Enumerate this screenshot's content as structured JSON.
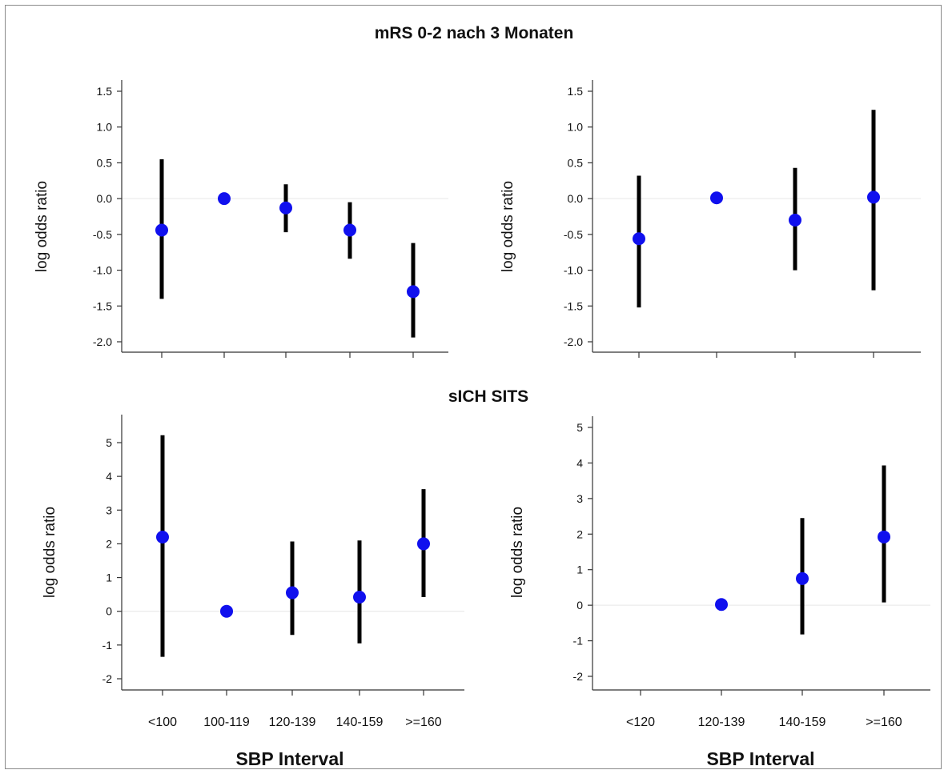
{
  "headings": {
    "top": "mRS 0-2 nach 3 Monaten",
    "middle": "sICH SITS"
  },
  "x_titles": [
    "SBP Interval",
    "SBP Interval"
  ],
  "colors": {
    "point": "#1010ee",
    "whisker": "#000000",
    "axis": "#333333",
    "zero_line": "#e6e6e6"
  },
  "chart_data": [
    {
      "type": "scatter",
      "subtype": "point-range",
      "categories": [
        "<100",
        "100-119",
        "120-139",
        "140-159",
        ">=160"
      ],
      "values": [
        -0.44,
        0.0,
        -0.13,
        -0.44,
        -1.3
      ],
      "ci_low": [
        -1.4,
        null,
        -0.47,
        -0.84,
        -1.94
      ],
      "ci_high": [
        0.55,
        null,
        0.2,
        -0.05,
        -0.62
      ],
      "ylabel": "log odds ratio",
      "ylim": [
        -2.0,
        1.5
      ],
      "yticks": [
        -2.0,
        -1.5,
        -1.0,
        -0.5,
        0.0,
        0.5,
        1.0,
        1.5
      ],
      "ytick_labels": [
        "-2.0",
        "-1.5",
        "-1.0",
        "-0.5",
        "0.0",
        "0.5",
        "1.0",
        "1.5"
      ],
      "show_xtick_labels": false,
      "reference_line": 0
    },
    {
      "type": "scatter",
      "subtype": "point-range",
      "categories": [
        "<120",
        "120-139",
        "140-159",
        ">=160"
      ],
      "values": [
        -0.56,
        0.01,
        -0.3,
        0.02
      ],
      "ci_low": [
        -1.52,
        null,
        -1.0,
        -1.28
      ],
      "ci_high": [
        0.32,
        null,
        0.43,
        1.24
      ],
      "ylabel": "log odds ratio",
      "ylim": [
        -2.0,
        1.5
      ],
      "yticks": [
        -2.0,
        -1.5,
        -1.0,
        -0.5,
        0.0,
        0.5,
        1.0,
        1.5
      ],
      "ytick_labels": [
        "-2.0",
        "-1.5",
        "-1.0",
        "-0.5",
        "0.0",
        "0.5",
        "1.0",
        "1.5"
      ],
      "show_xtick_labels": false,
      "reference_line": 0
    },
    {
      "type": "scatter",
      "subtype": "point-range",
      "categories": [
        "<100",
        "100-119",
        "120-139",
        "140-159",
        ">=160"
      ],
      "values": [
        2.2,
        0.0,
        0.55,
        0.42,
        2.0
      ],
      "ci_low": [
        -1.35,
        null,
        -0.7,
        -0.95,
        0.42
      ],
      "ci_high": [
        5.22,
        null,
        2.07,
        2.1,
        3.62
      ],
      "ylabel": "log odds ratio",
      "ylim": [
        -2,
        5
      ],
      "yticks": [
        -2,
        -1,
        0,
        1,
        2,
        3,
        4,
        5
      ],
      "ytick_labels": [
        "-2",
        "-1",
        "0",
        "1",
        "2",
        "3",
        "4",
        "5"
      ],
      "show_xtick_labels": true,
      "reference_line": 0
    },
    {
      "type": "scatter",
      "subtype": "point-range",
      "categories": [
        "<120",
        "120-139",
        "140-159",
        ">=160"
      ],
      "values": [
        null,
        0.02,
        0.75,
        1.92
      ],
      "ci_low": [
        null,
        null,
        -0.82,
        0.08
      ],
      "ci_high": [
        null,
        null,
        2.45,
        3.93
      ],
      "ylabel": "log odds ratio",
      "ylim": [
        -2,
        5
      ],
      "yticks": [
        -2,
        -1,
        0,
        1,
        2,
        3,
        4,
        5
      ],
      "ytick_labels": [
        "-2",
        "-1",
        "0",
        "1",
        "2",
        "3",
        "4",
        "5"
      ],
      "show_xtick_labels": true,
      "reference_line": 0
    }
  ]
}
